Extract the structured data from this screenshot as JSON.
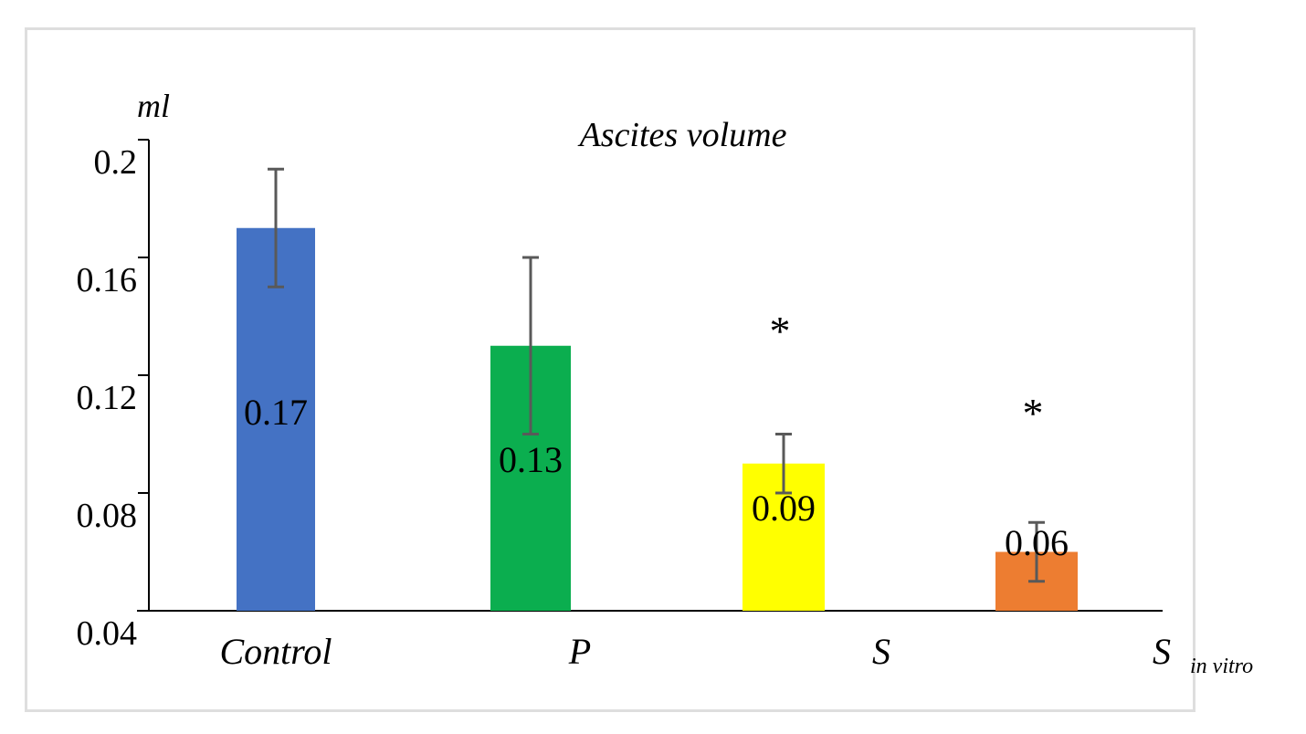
{
  "chart_data": {
    "type": "bar",
    "title": "Ascites volume",
    "ylabel": "ml",
    "xlabel": "",
    "ylim": [
      0.04,
      0.2
    ],
    "yticks": [
      "0.2",
      "0.16",
      "0.12",
      "0.08",
      "0.04"
    ],
    "ytick_values": [
      0.2,
      0.16,
      0.12,
      0.08,
      0.04
    ],
    "categories": [
      {
        "main": "Control",
        "sub": ""
      },
      {
        "main": "P",
        "sub": ""
      },
      {
        "main": "S",
        "sub": ""
      },
      {
        "main": "S",
        "sub": "in vitro"
      }
    ],
    "values": [
      0.17,
      0.13,
      0.09,
      0.06
    ],
    "plotted_values": [
      0.17,
      0.13,
      0.09,
      0.06
    ],
    "value_labels": [
      "0.17",
      "0.13",
      "0.09",
      "0.06"
    ],
    "errors": [
      0.02,
      0.03,
      0.01,
      0.01
    ],
    "colors": [
      "#4472C4",
      "#0BAE4F",
      "#FFFF00",
      "#ED7D31"
    ],
    "significance": [
      "",
      "",
      "*",
      "*"
    ],
    "grid": false
  }
}
